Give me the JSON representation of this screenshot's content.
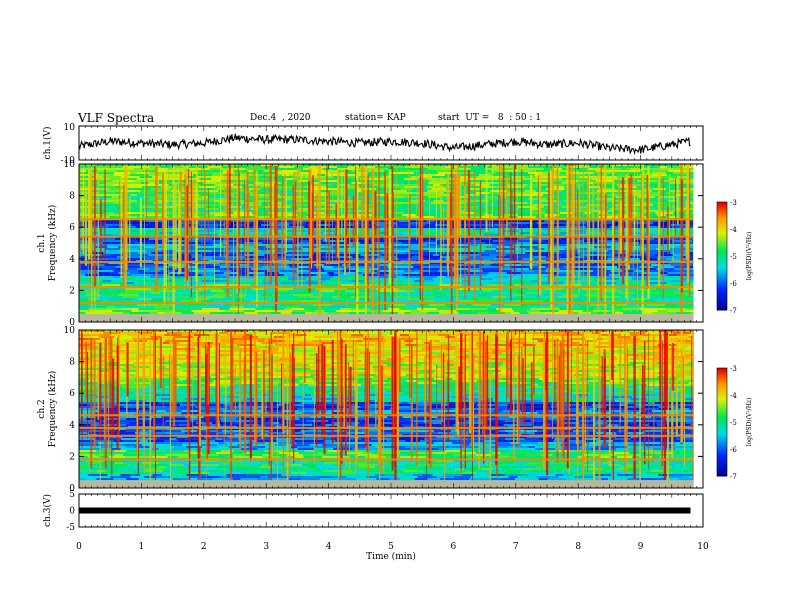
{
  "header": {
    "title": "VLF Spectra",
    "date": "Dec.4  , 2020",
    "station": "station= KAP",
    "start": "start  UT =   8  : 50 : 1"
  },
  "chart_data": [
    {
      "type": "line",
      "ylabel": "ch.1(V)",
      "ylim": [
        -10,
        10
      ],
      "yticks": [
        "10",
        "-10"
      ],
      "x": [
        0.0,
        0.5,
        1.0,
        1.5,
        2.0,
        2.5,
        3.0,
        3.5,
        4.0,
        4.5,
        5.0,
        5.5,
        6.0,
        6.5,
        7.0,
        7.5,
        8.0,
        8.5,
        9.0,
        9.5,
        9.8
      ],
      "values": [
        -2,
        1,
        0,
        -1,
        0,
        3,
        2,
        2,
        1,
        0,
        1,
        0,
        -3,
        -1,
        1,
        -1,
        0,
        -3,
        -4,
        -1,
        1
      ]
    },
    {
      "type": "heatmap",
      "ylabel": "ch.1\nFrequency (kHz)",
      "ylim": [
        0,
        10
      ],
      "yticks": [
        "0",
        "2",
        "4",
        "6",
        "8",
        "10"
      ],
      "colorbar": {
        "label": "log(PSD)(V²/Hz)",
        "range": [
          -7,
          -3
        ],
        "ticks": [
          "-3",
          "-4",
          "-5",
          "-6",
          "-7"
        ]
      },
      "freq_bands_khz": [
        0.2,
        1.0,
        2.0,
        2.5,
        3.0,
        3.5,
        4.0,
        4.5,
        5.0,
        5.5,
        6.0,
        6.5,
        7.0,
        8.0,
        9.0,
        10.0
      ],
      "log_psd_band_mean": [
        -4.5,
        -5.0,
        -4.8,
        -5.3,
        -5.9,
        -5.8,
        -6.0,
        -5.5,
        -6.1,
        -5.2,
        -6.2,
        -4.5,
        -4.8,
        -4.6,
        -4.5
      ]
    },
    {
      "type": "heatmap",
      "ylabel": "ch.2\nFrequency (kHz)",
      "ylim": [
        0,
        10
      ],
      "yticks": [
        "0",
        "2",
        "4",
        "6",
        "8",
        "10"
      ],
      "colorbar": {
        "label": "log(PSD)(V²/Hz)",
        "range": [
          -7,
          -3
        ],
        "ticks": [
          "-3",
          "-4",
          "-5",
          "-6",
          "-7"
        ]
      },
      "freq_bands_khz": [
        0.2,
        1.0,
        2.0,
        2.5,
        3.0,
        3.5,
        4.0,
        4.5,
        5.0,
        5.5,
        6.0,
        6.5,
        7.0,
        8.0,
        9.0,
        10.0
      ],
      "log_psd_band_mean": [
        -5.6,
        -5.0,
        -4.7,
        -5.6,
        -6.0,
        -5.9,
        -6.1,
        -5.7,
        -6.1,
        -5.3,
        -5.0,
        -4.6,
        -4.2,
        -4.0,
        -3.8
      ]
    },
    {
      "type": "line",
      "ylabel": "ch.3(V)",
      "ylim": [
        -5,
        5
      ],
      "yticks": [
        "5",
        "0",
        "-5"
      ],
      "x": [
        0,
        9.8
      ],
      "values": [
        0,
        0
      ]
    }
  ],
  "xaxis": {
    "label": "Time  (min)",
    "xlim": [
      0,
      10
    ],
    "ticks": [
      "0",
      "1",
      "2",
      "3",
      "4",
      "5",
      "6",
      "7",
      "8",
      "9",
      "10"
    ]
  }
}
